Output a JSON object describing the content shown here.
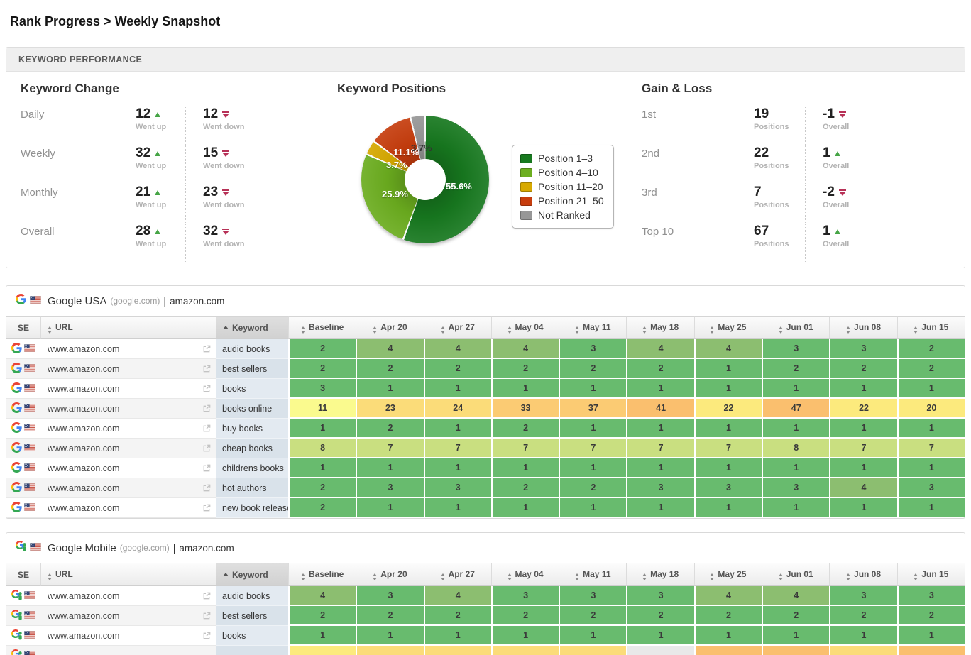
{
  "page": {
    "title": "Rank Progress > Weekly Snapshot"
  },
  "panel": {
    "header": "KEYWORD PERFORMANCE"
  },
  "keyword_change": {
    "heading": "Keyword Change",
    "up_label": "Went up",
    "down_label": "Went down",
    "rows": [
      {
        "label": "Daily",
        "up": 12,
        "down": 12
      },
      {
        "label": "Weekly",
        "up": 32,
        "down": 15
      },
      {
        "label": "Monthly",
        "up": 21,
        "down": 23
      },
      {
        "label": "Overall",
        "up": 28,
        "down": 32
      }
    ]
  },
  "chart_data": {
    "type": "pie",
    "donut": true,
    "title": "Keyword Positions",
    "legend_position": "right",
    "slices": [
      {
        "label": "Position 1–3",
        "value": 55.6,
        "display": "55.6%",
        "color": "#17791f"
      },
      {
        "label": "Position 4–10",
        "value": 25.9,
        "display": "25.9%",
        "color": "#6cae1f"
      },
      {
        "label": "Position 11–20",
        "value": 3.7,
        "display": "3.7%",
        "color": "#d7a900"
      },
      {
        "label": "Position 21–50",
        "value": 11.1,
        "display": "11.1%",
        "color": "#c73d0d"
      },
      {
        "label": "Not Ranked",
        "value": 3.7,
        "display": "3.7%",
        "color": "#979797"
      }
    ]
  },
  "gain_loss": {
    "heading": "Gain & Loss",
    "positions_label": "Positions",
    "overall_label": "Overall",
    "rows": [
      {
        "label": "1st",
        "positions": 19,
        "overall": -1,
        "direction": "down"
      },
      {
        "label": "2nd",
        "positions": 22,
        "overall": 1,
        "direction": "up"
      },
      {
        "label": "3rd",
        "positions": 7,
        "overall": -2,
        "direction": "down"
      },
      {
        "label": "Top 10",
        "positions": 67,
        "overall": 1,
        "direction": "up"
      }
    ]
  },
  "columns": [
    "SE",
    "URL",
    "Keyword",
    "Baseline",
    "Apr 20",
    "Apr 27",
    "May 04",
    "May 11",
    "May 18",
    "May 25",
    "Jun 01",
    "Jun 08",
    "Jun 15"
  ],
  "color_scale": [
    {
      "max": 3,
      "color": "#68bb6e"
    },
    {
      "max": 5,
      "color": "#8cbe70"
    },
    {
      "max": 10,
      "color": "#c9df80"
    },
    {
      "max": 14,
      "color": "#fafa8e"
    },
    {
      "max": 22,
      "color": "#fcea7d"
    },
    {
      "max": 28,
      "color": "#fbdc79"
    },
    {
      "max": 39,
      "color": "#fbcb73"
    },
    {
      "max": 100,
      "color": "#fabf6e"
    }
  ],
  "tables": [
    {
      "engine": "Google USA",
      "engine_domain": "(google.com)",
      "separator": "|",
      "website": "amazon.com",
      "url": "www.amazon.com",
      "sorted_column": "Keyword",
      "sort_direction": "asc",
      "rows": [
        {
          "keyword": "audio books",
          "values": [
            2,
            4,
            4,
            4,
            3,
            4,
            4,
            3,
            3,
            2
          ]
        },
        {
          "keyword": "best sellers",
          "values": [
            2,
            2,
            2,
            2,
            2,
            2,
            1,
            2,
            2,
            2
          ]
        },
        {
          "keyword": "books",
          "values": [
            3,
            1,
            1,
            1,
            1,
            1,
            1,
            1,
            1,
            1
          ]
        },
        {
          "keyword": "books online",
          "values": [
            11,
            23,
            24,
            33,
            37,
            41,
            22,
            47,
            22,
            20
          ]
        },
        {
          "keyword": "buy books",
          "values": [
            1,
            2,
            1,
            2,
            1,
            1,
            1,
            1,
            1,
            1
          ]
        },
        {
          "keyword": "cheap books",
          "values": [
            8,
            7,
            7,
            7,
            7,
            7,
            7,
            8,
            7,
            7
          ]
        },
        {
          "keyword": "childrens books",
          "values": [
            1,
            1,
            1,
            1,
            1,
            1,
            1,
            1,
            1,
            1
          ]
        },
        {
          "keyword": "hot authors",
          "values": [
            2,
            3,
            3,
            2,
            2,
            3,
            3,
            3,
            4,
            3
          ]
        },
        {
          "keyword": "new book releases",
          "values": [
            2,
            1,
            1,
            1,
            1,
            1,
            1,
            1,
            1,
            1
          ]
        }
      ]
    },
    {
      "engine": "Google Mobile",
      "engine_domain": "(google.com)",
      "separator": "|",
      "website": "amazon.com",
      "url": "www.amazon.com",
      "sorted_column": "Keyword",
      "sort_direction": "asc",
      "rows": [
        {
          "keyword": "audio books",
          "values": [
            4,
            3,
            4,
            3,
            3,
            3,
            4,
            4,
            3,
            3
          ]
        },
        {
          "keyword": "best sellers",
          "values": [
            2,
            2,
            2,
            2,
            2,
            2,
            2,
            2,
            2,
            2
          ]
        },
        {
          "keyword": "books",
          "values": [
            1,
            1,
            1,
            1,
            1,
            1,
            1,
            1,
            1,
            1
          ]
        }
      ],
      "partial_row_colors": [
        "#fcea7d",
        "#fbdc79",
        "#fbdc79",
        "#fbdc79",
        "#fbdc79",
        "#e9e9e9",
        "#fabf6e",
        "#fabf6e",
        "#fbdc79",
        "#fabf6e"
      ]
    }
  ]
}
